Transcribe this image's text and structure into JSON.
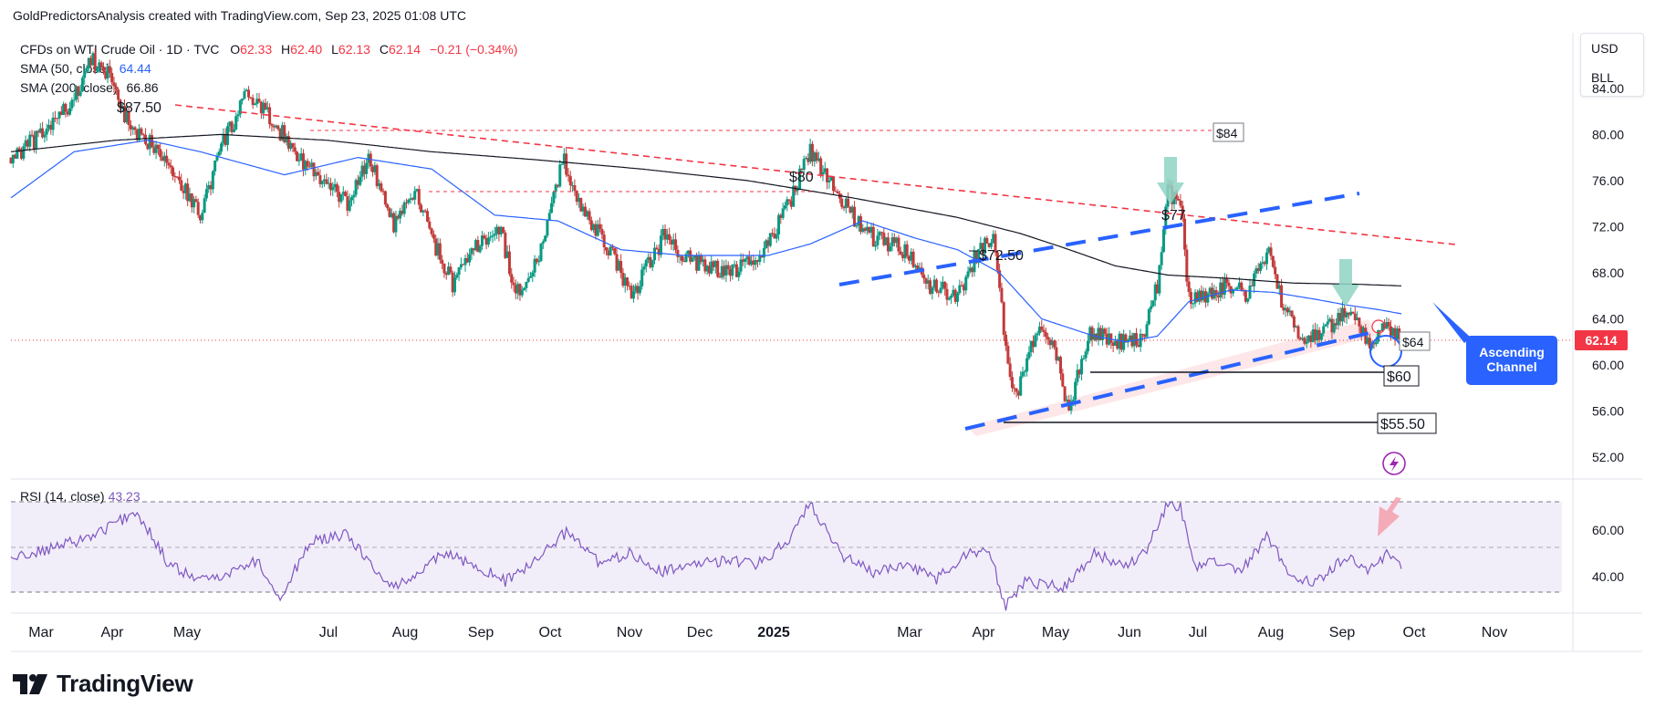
{
  "header": {
    "attribution": "GoldPredictorsAnalysis created with TradingView.com, Sep 23, 2025 01:08 UTC"
  },
  "legend": {
    "symbol": "CFDs on WTI Crude Oil · 1D · TVC",
    "open_label": "O",
    "open": "62.33",
    "high_label": "H",
    "high": "62.40",
    "low_label": "L",
    "low": "62.13",
    "close_label": "C",
    "close": "62.14",
    "change": "−0.21 (−0.34%)",
    "sma50_label": "SMA (50, close)",
    "sma50_value": "64.44",
    "sma200_label": "SMA (200, close)",
    "sma200_value": "66.86"
  },
  "currency": {
    "currency": "USD",
    "unit": "BLL"
  },
  "rsi": {
    "label": "RSI (14, close)",
    "value": "43.23"
  },
  "footer": {
    "brand": "TradingView"
  },
  "colors": {
    "up": "#089981",
    "down": "#c23b3b",
    "sma50": "#2962ff",
    "sma200": "#131722",
    "rsi": "#7e57c2",
    "price_badge": "#f23645",
    "accent": "#2962ff"
  },
  "chart_data": {
    "type": "candlestick",
    "x_ticks": [
      "Mar",
      "Apr",
      "May",
      "Jul",
      "Aug",
      "Sep",
      "Oct",
      "Nov",
      "Dec",
      "2025",
      "Mar",
      "Apr",
      "May",
      "Jun",
      "Jul",
      "Aug",
      "Sep",
      "Oct",
      "Nov"
    ],
    "y_ticks": [
      "84.00",
      "80.00",
      "76.00",
      "72.00",
      "68.00",
      "64.00",
      "60.00",
      "56.00",
      "52.00"
    ],
    "ylim": [
      50.5,
      88.5
    ],
    "last_price": "62.14",
    "rsi_ticks": [
      "60.00",
      "40.00"
    ],
    "rsi_ylim": [
      25,
      80
    ],
    "price_anchors": [
      [
        0,
        78
      ],
      [
        30,
        80
      ],
      [
        60,
        83
      ],
      [
        75,
        86.5
      ],
      [
        95,
        85
      ],
      [
        115,
        80
      ],
      [
        140,
        79
      ],
      [
        160,
        76
      ],
      [
        180,
        73
      ],
      [
        200,
        79
      ],
      [
        225,
        83.5
      ],
      [
        250,
        81
      ],
      [
        275,
        78
      ],
      [
        295,
        76
      ],
      [
        320,
        74
      ],
      [
        340,
        78
      ],
      [
        365,
        72
      ],
      [
        385,
        75
      ],
      [
        400,
        71
      ],
      [
        420,
        67
      ],
      [
        440,
        70
      ],
      [
        465,
        72
      ],
      [
        480,
        66
      ],
      [
        505,
        70
      ],
      [
        525,
        78
      ],
      [
        545,
        73
      ],
      [
        570,
        70
      ],
      [
        590,
        66
      ],
      [
        620,
        71
      ],
      [
        650,
        69
      ],
      [
        680,
        68
      ],
      [
        710,
        69
      ],
      [
        740,
        74
      ],
      [
        760,
        78.5
      ],
      [
        780,
        76
      ],
      [
        800,
        73
      ],
      [
        820,
        71
      ],
      [
        850,
        70
      ],
      [
        870,
        67
      ],
      [
        900,
        66
      ],
      [
        920,
        70
      ],
      [
        935,
        71.5
      ],
      [
        945,
        62
      ],
      [
        955,
        57
      ],
      [
        975,
        63
      ],
      [
        995,
        61
      ],
      [
        1005,
        56
      ],
      [
        1025,
        63
      ],
      [
        1050,
        62
      ],
      [
        1075,
        62
      ],
      [
        1090,
        67
      ],
      [
        1100,
        75
      ],
      [
        1112,
        74
      ],
      [
        1120,
        66
      ],
      [
        1140,
        66
      ],
      [
        1160,
        67
      ],
      [
        1175,
        66
      ],
      [
        1195,
        70
      ],
      [
        1210,
        65
      ],
      [
        1230,
        62
      ],
      [
        1250,
        63
      ],
      [
        1270,
        65
      ],
      [
        1290,
        62
      ],
      [
        1310,
        63.5
      ],
      [
        1322,
        62.14
      ]
    ],
    "rsi_anchors": [
      [
        0,
        48
      ],
      [
        40,
        52
      ],
      [
        80,
        58
      ],
      [
        120,
        68
      ],
      [
        150,
        45
      ],
      [
        180,
        38
      ],
      [
        210,
        42
      ],
      [
        235,
        47
      ],
      [
        255,
        30
      ],
      [
        285,
        55
      ],
      [
        320,
        58
      ],
      [
        360,
        35
      ],
      [
        390,
        42
      ],
      [
        410,
        50
      ],
      [
        440,
        45
      ],
      [
        470,
        38
      ],
      [
        500,
        47
      ],
      [
        530,
        60
      ],
      [
        560,
        45
      ],
      [
        590,
        50
      ],
      [
        620,
        42
      ],
      [
        650,
        45
      ],
      [
        680,
        47
      ],
      [
        710,
        45
      ],
      [
        740,
        56
      ],
      [
        760,
        72
      ],
      [
        790,
        49
      ],
      [
        820,
        42
      ],
      [
        850,
        45
      ],
      [
        880,
        39
      ],
      [
        910,
        50
      ],
      [
        930,
        52
      ],
      [
        945,
        27
      ],
      [
        965,
        38
      ],
      [
        1000,
        35
      ],
      [
        1030,
        50
      ],
      [
        1060,
        44
      ],
      [
        1080,
        52
      ],
      [
        1100,
        72
      ],
      [
        1112,
        70
      ],
      [
        1125,
        44
      ],
      [
        1150,
        47
      ],
      [
        1170,
        42
      ],
      [
        1195,
        58
      ],
      [
        1215,
        40
      ],
      [
        1240,
        38
      ],
      [
        1270,
        48
      ],
      [
        1290,
        42
      ],
      [
        1310,
        50
      ],
      [
        1322,
        43.23
      ]
    ],
    "sma50_anchors": [
      [
        0,
        74.5
      ],
      [
        60,
        78.5
      ],
      [
        130,
        79.5
      ],
      [
        180,
        78.5
      ],
      [
        260,
        76.5
      ],
      [
        330,
        78
      ],
      [
        400,
        77
      ],
      [
        460,
        73
      ],
      [
        520,
        72.5
      ],
      [
        580,
        70
      ],
      [
        640,
        69.5
      ],
      [
        720,
        69.5
      ],
      [
        760,
        70.5
      ],
      [
        810,
        72.5
      ],
      [
        860,
        71
      ],
      [
        900,
        70
      ],
      [
        940,
        68
      ],
      [
        980,
        64
      ],
      [
        1030,
        62.5
      ],
      [
        1060,
        62
      ],
      [
        1090,
        62.5
      ],
      [
        1120,
        65.5
      ],
      [
        1160,
        66.5
      ],
      [
        1200,
        66.3
      ],
      [
        1240,
        65.7
      ],
      [
        1270,
        65.2
      ],
      [
        1300,
        64.8
      ],
      [
        1322,
        64.44
      ]
    ],
    "sma200_anchors": [
      [
        0,
        78.5
      ],
      [
        100,
        79.5
      ],
      [
        200,
        80
      ],
      [
        300,
        79.5
      ],
      [
        400,
        78.5
      ],
      [
        500,
        77.8
      ],
      [
        600,
        77
      ],
      [
        700,
        76
      ],
      [
        800,
        74.5
      ],
      [
        900,
        72.8
      ],
      [
        960,
        71.4
      ],
      [
        1000,
        70.2
      ],
      [
        1050,
        68.6
      ],
      [
        1100,
        67.8
      ],
      [
        1160,
        67.5
      ],
      [
        1220,
        67.1
      ],
      [
        1280,
        67
      ],
      [
        1322,
        66.86
      ]
    ],
    "annotations": {
      "price_labels": [
        "$87.50",
        "$80",
        "$72.50",
        "$77",
        "$84",
        "$64",
        "$60",
        "$55.50"
      ],
      "channel_label": "Ascending Channel"
    }
  }
}
